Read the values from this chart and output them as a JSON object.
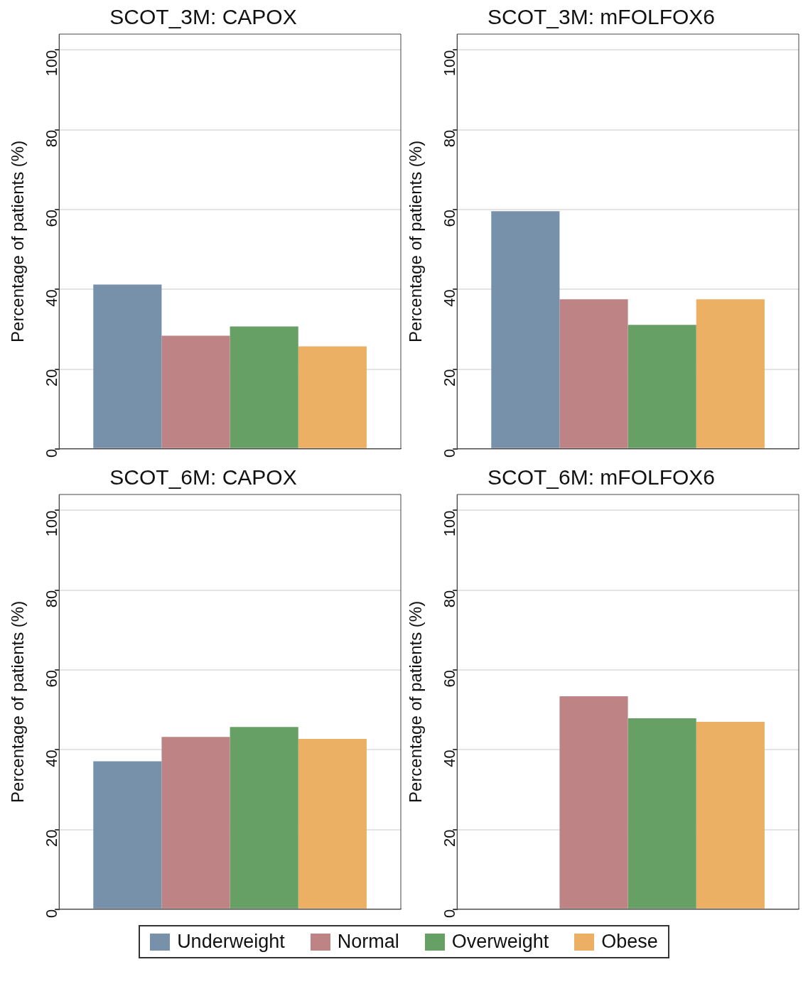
{
  "chart_data": [
    {
      "type": "bar",
      "title": "SCOT_3M: CAPOX",
      "ylabel": "Percentage of patients (%)",
      "categories": [
        null
      ],
      "ylim": [
        0,
        104
      ],
      "yticks": [
        0,
        20,
        40,
        60,
        80,
        100
      ],
      "grid": "y",
      "legend": "bottom",
      "series": [
        {
          "name": "Underweight",
          "color": "#7891ab",
          "values": [
            41.2
          ]
        },
        {
          "name": "Normal",
          "color": "#bd8385",
          "values": [
            28.4
          ]
        },
        {
          "name": "Overweight",
          "color": "#66a064",
          "values": [
            30.7
          ]
        },
        {
          "name": "Obese",
          "color": "#ebb063",
          "values": [
            25.7
          ]
        }
      ]
    },
    {
      "type": "bar",
      "title": "SCOT_3M: mFOLFOX6",
      "ylabel": "Percentage of patients (%)",
      "categories": [
        null
      ],
      "ylim": [
        0,
        104
      ],
      "yticks": [
        0,
        20,
        40,
        60,
        80,
        100
      ],
      "grid": "y",
      "legend": "bottom",
      "series": [
        {
          "name": "Underweight",
          "color": "#7891ab",
          "values": [
            59.6
          ]
        },
        {
          "name": "Normal",
          "color": "#bd8385",
          "values": [
            37.5
          ]
        },
        {
          "name": "Overweight",
          "color": "#66a064",
          "values": [
            31.1
          ]
        },
        {
          "name": "Obese",
          "color": "#ebb063",
          "values": [
            37.5
          ]
        }
      ]
    },
    {
      "type": "bar",
      "title": "SCOT_6M: CAPOX",
      "ylabel": "Percentage of patients (%)",
      "categories": [
        null
      ],
      "ylim": [
        0,
        104
      ],
      "yticks": [
        0,
        20,
        40,
        60,
        80,
        100
      ],
      "grid": "y",
      "legend": "bottom",
      "series": [
        {
          "name": "Underweight",
          "color": "#7891ab",
          "values": [
            37.1
          ]
        },
        {
          "name": "Normal",
          "color": "#bd8385",
          "values": [
            43.2
          ]
        },
        {
          "name": "Overweight",
          "color": "#66a064",
          "values": [
            45.7
          ]
        },
        {
          "name": "Obese",
          "color": "#ebb063",
          "values": [
            42.7
          ]
        }
      ]
    },
    {
      "type": "bar",
      "title": "SCOT_6M: mFOLFOX6",
      "ylabel": "Percentage of patients (%)",
      "categories": [
        null
      ],
      "ylim": [
        0,
        104
      ],
      "yticks": [
        0,
        20,
        40,
        60,
        80,
        100
      ],
      "grid": "y",
      "legend": "bottom",
      "series": [
        {
          "name": "Underweight",
          "color": "#7891ab",
          "values": [
            0
          ]
        },
        {
          "name": "Normal",
          "color": "#bd8385",
          "values": [
            53.4
          ]
        },
        {
          "name": "Overweight",
          "color": "#66a064",
          "values": [
            47.9
          ]
        },
        {
          "name": "Obese",
          "color": "#ebb063",
          "values": [
            47.0
          ]
        }
      ]
    }
  ]
}
